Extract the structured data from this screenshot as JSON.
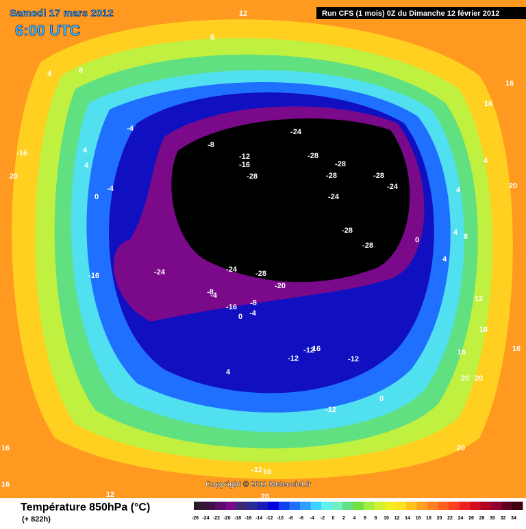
{
  "header": {
    "date": "Samedi 17 mars 2012",
    "time": "6:00 UTC",
    "run": "Run CFS (1 mois) 0Z du Dimanche 12 février 2012"
  },
  "copyright": "Copyright © 2011 Meteociel.fr",
  "footer": {
    "title": "Température 850hPa (°C)",
    "lead": "(+ 822h)"
  },
  "map_labels": [
    "12",
    "8",
    "8",
    "4",
    "16",
    "16",
    "-4",
    "-8",
    "-24",
    "-28",
    "-28",
    "-28",
    "-28",
    "-24",
    "-24",
    "-12",
    "-16",
    "-28",
    "4",
    "4",
    "-16",
    "20",
    "-4",
    "0",
    "4",
    "20",
    "4",
    "-28",
    "-28",
    "0",
    "4",
    "8",
    "4",
    "-16",
    "-24",
    "-24",
    "-28",
    "-20",
    "-8",
    "-4",
    "-16",
    "-8",
    "-4",
    "0",
    "12",
    "16",
    "16",
    "16",
    "-12",
    "-12",
    "16",
    "-12",
    "4",
    "20",
    "20",
    "0",
    "-12",
    "20",
    "16",
    "16",
    "12",
    "-12",
    "16",
    "20"
  ],
  "legend": {
    "labels": [
      "-26",
      "-24",
      "-22",
      "-20",
      "-18",
      "-16",
      "-14",
      "-12",
      "-10",
      "-8",
      "-6",
      "-4",
      "-2",
      "0",
      "2",
      "4",
      "6",
      "8",
      "10",
      "12",
      "14",
      "16",
      "18",
      "20",
      "22",
      "24",
      "26",
      "28",
      "30",
      "32",
      "34"
    ],
    "colors": [
      "#2a1a2a",
      "#3c1040",
      "#5a0a6a",
      "#7a0a8a",
      "#3a2a70",
      "#2a2a9a",
      "#1a1ab8",
      "#0000e0",
      "#1040f0",
      "#2070ff",
      "#30a0ff",
      "#40d0ff",
      "#60f0f0",
      "#70f0c0",
      "#60e080",
      "#70e040",
      "#a0f040",
      "#d0f030",
      "#f0f020",
      "#ffe020",
      "#ffc020",
      "#ffa020",
      "#ff8020",
      "#ff6020",
      "#ff4020",
      "#f02020",
      "#d01020",
      "#b00020",
      "#900030",
      "#600020",
      "#400010"
    ]
  }
}
